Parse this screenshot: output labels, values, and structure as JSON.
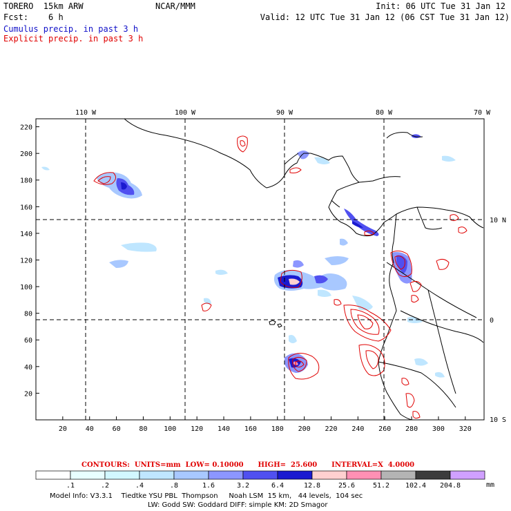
{
  "header": {
    "model": "TORERO  15km ARW",
    "center": "NCAR/MMM",
    "init": "Init: 06 UTC Tue 31 Jan 12",
    "fcst": "Fcst:    6 h",
    "valid": "Valid: 12 UTC Tue 31 Jan 12 (06 CST Tue 31 Jan 12)",
    "legend_cumulus": "Cumulus precip. in past 3 h",
    "legend_explicit": "Explicit precip. in past 3 h",
    "colors": {
      "cumulus": "#1010c8",
      "explicit": "#e00000"
    }
  },
  "map": {
    "lon_labels": [
      "110 W",
      "100 W",
      "90 W",
      "80 W",
      "70 W"
    ],
    "lat_labels": [
      "10 N",
      "0",
      "10 S"
    ],
    "y_ticks": [
      20,
      40,
      60,
      80,
      100,
      120,
      140,
      160,
      180,
      200,
      220
    ],
    "x_ticks": [
      20,
      40,
      60,
      80,
      100,
      120,
      140,
      160,
      180,
      200,
      220,
      240,
      260,
      280,
      300,
      320
    ]
  },
  "contours": {
    "line": "CONTOURS:  UNITS=mm  LOW= 0.10000      HIGH=  25.600      INTERVAL=X  4.0000"
  },
  "colorbar": {
    "labels": [
      ".1",
      ".2",
      ".4",
      ".8",
      "1.6",
      "3.2",
      "6.4",
      "12.8",
      "25.6",
      "51.2",
      "102.4",
      "204.8"
    ],
    "unit": "mm",
    "colors": [
      "#ffffff",
      "#e8ffff",
      "#d2f8ff",
      "#bfe6ff",
      "#a8c8ff",
      "#8c96ff",
      "#5050f0",
      "#1a1ad0",
      "#ffd0d0",
      "#ff90b4",
      "#b4b4b4",
      "#3c3c3c",
      "#d0a0ff"
    ]
  },
  "footer": {
    "line1": "Model Info: V3.3.1    Tiedtke YSU PBL  Thompson     Noah LSM  15 km,   44 levels,  104 sec",
    "line2": "LW: Godd SW: Goddard DIFF: simple KM: 2D Smagor"
  }
}
